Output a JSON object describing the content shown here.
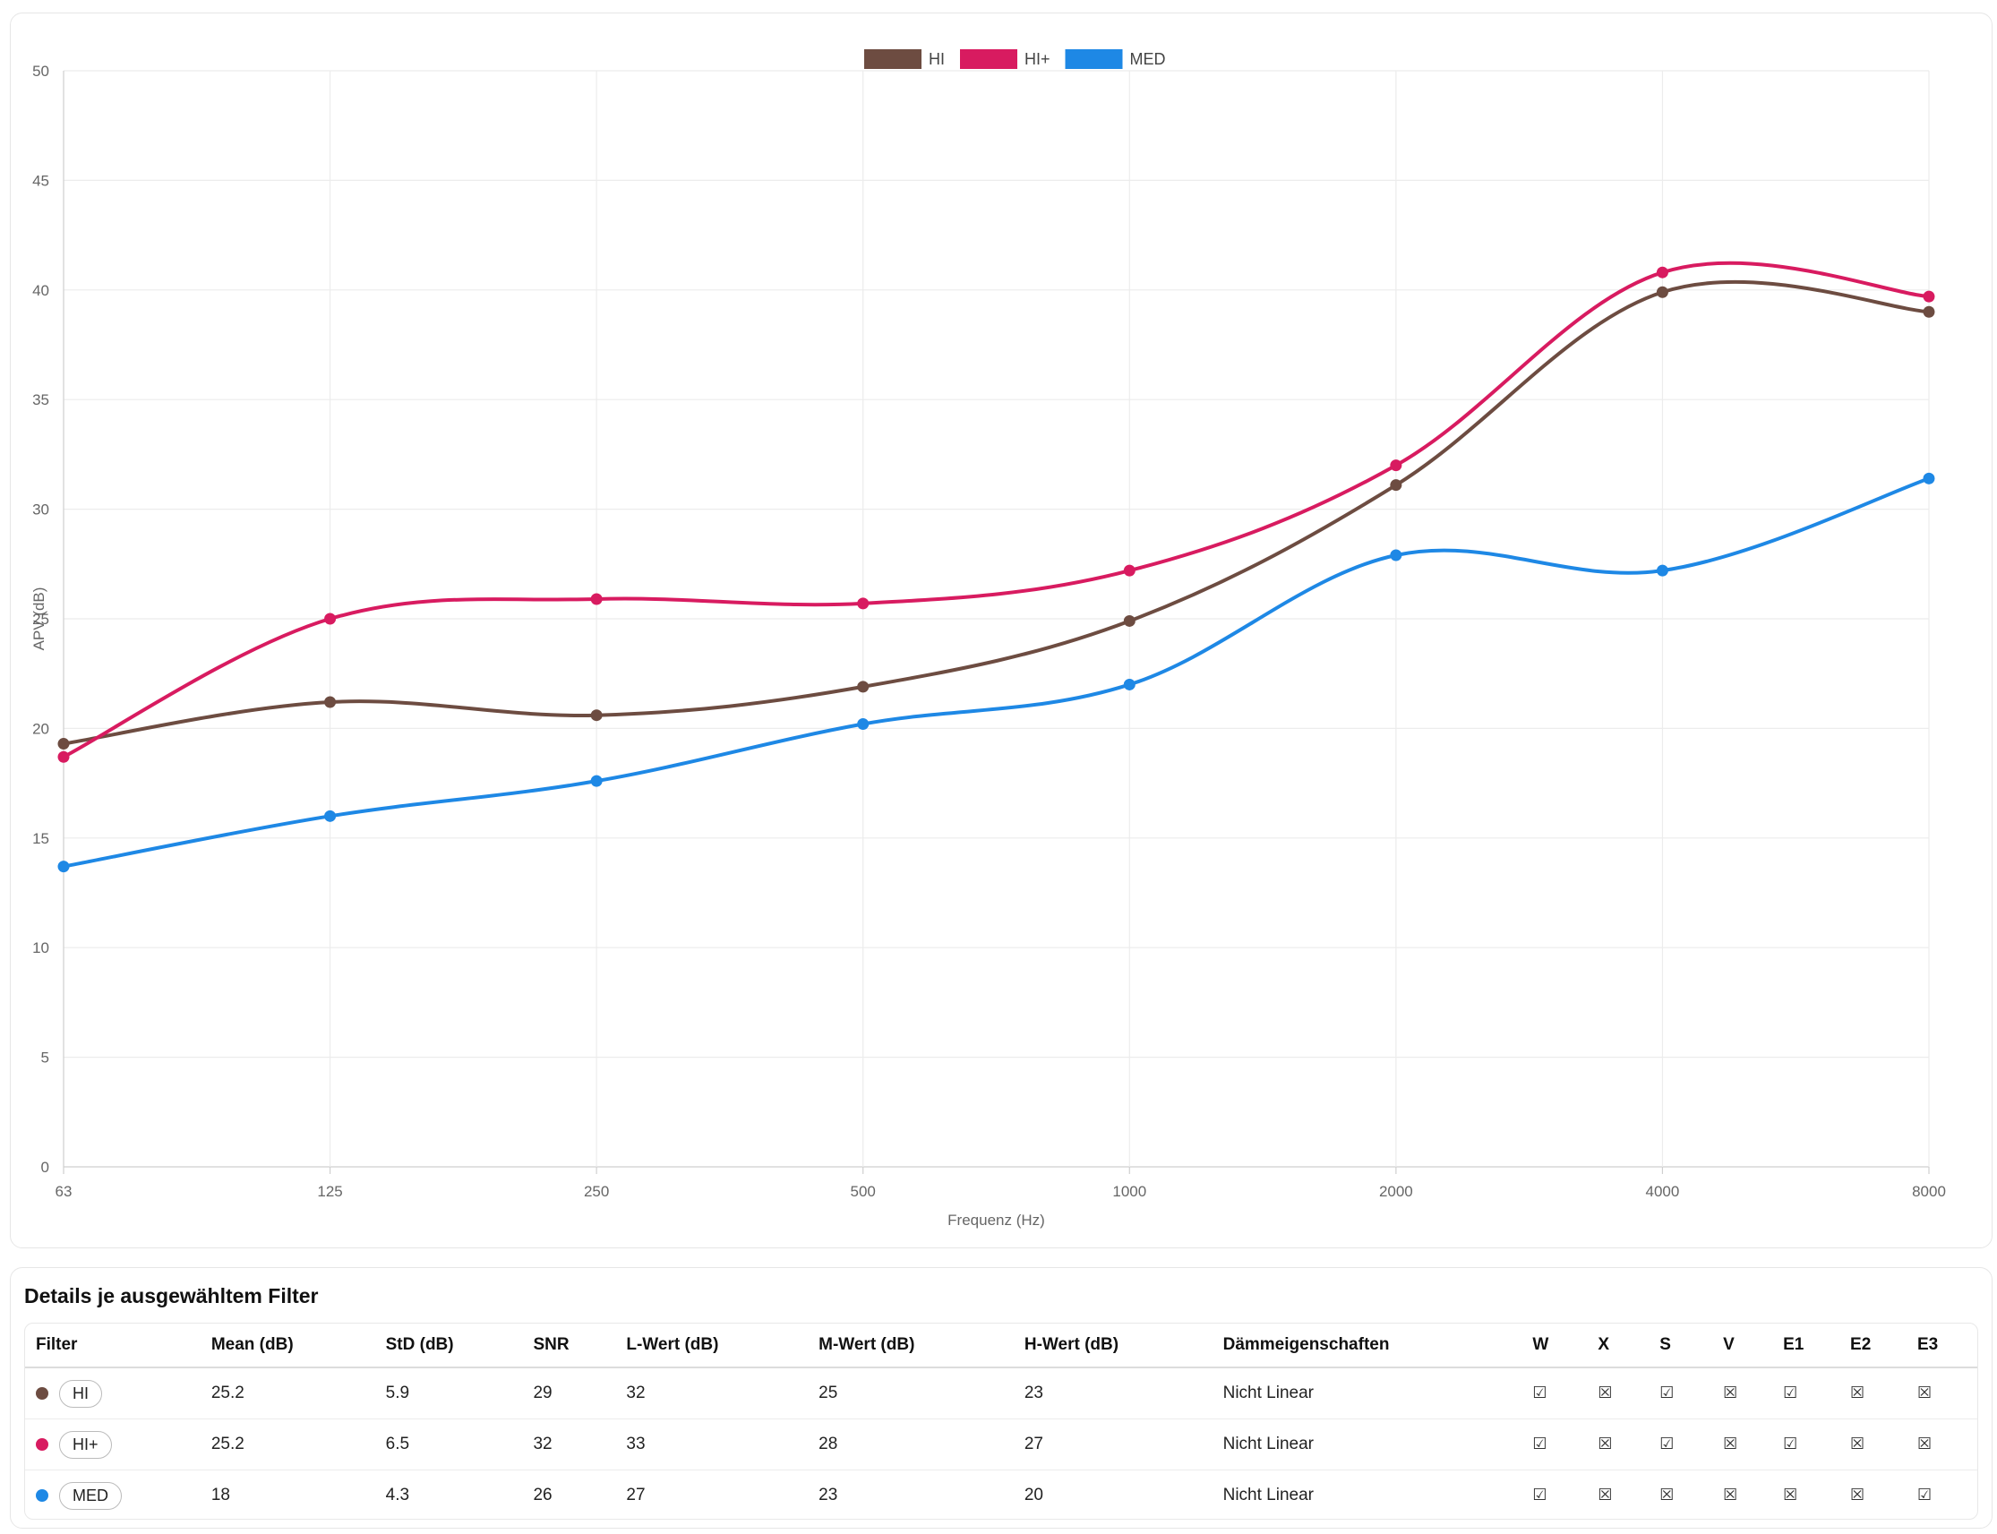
{
  "chart_data": {
    "type": "line",
    "x": [
      "63",
      "125",
      "250",
      "500",
      "1000",
      "2000",
      "4000",
      "8000"
    ],
    "xlabel": "Frequenz (Hz)",
    "ylabel": "APV (dB)",
    "ylim": [
      0,
      50
    ],
    "yticks": [
      0,
      5,
      10,
      15,
      20,
      25,
      30,
      35,
      40,
      45,
      50
    ],
    "grid": true,
    "legend": "top-center",
    "series": [
      {
        "name": "HI",
        "color": "#6d4c41",
        "values": [
          19.3,
          21.2,
          20.6,
          21.9,
          24.9,
          31.1,
          39.9,
          39.0
        ]
      },
      {
        "name": "HI+",
        "color": "#d81b60",
        "values": [
          18.7,
          25.0,
          25.9,
          25.7,
          27.2,
          32.0,
          40.8,
          39.7
        ]
      },
      {
        "name": "MED",
        "color": "#1e88e5",
        "values": [
          13.7,
          16.0,
          17.6,
          20.2,
          22.0,
          27.9,
          27.2,
          31.4
        ]
      }
    ]
  },
  "table": {
    "title": "Details je ausgewähltem Filter",
    "headers": [
      "Filter",
      "Mean (dB)",
      "StD (dB)",
      "SNR",
      "L-Wert (dB)",
      "M-Wert (dB)",
      "H-Wert (dB)",
      "Dämmeigenschaften",
      "W",
      "X",
      "S",
      "V",
      "E1",
      "E2",
      "E3"
    ],
    "rows": [
      {
        "name": "HI",
        "color": "#6d4c41",
        "values": [
          "25.2",
          "5.9",
          "29",
          "32",
          "25",
          "23",
          "Nicht Linear"
        ],
        "marks": [
          "☑",
          "☒",
          "☑",
          "☒",
          "☑",
          "☒",
          "☒"
        ]
      },
      {
        "name": "HI+",
        "color": "#d81b60",
        "values": [
          "25.2",
          "6.5",
          "32",
          "33",
          "28",
          "27",
          "Nicht Linear"
        ],
        "marks": [
          "☑",
          "☒",
          "☑",
          "☒",
          "☑",
          "☒",
          "☒"
        ]
      },
      {
        "name": "MED",
        "color": "#1e88e5",
        "values": [
          "18",
          "4.3",
          "26",
          "27",
          "23",
          "20",
          "Nicht Linear"
        ],
        "marks": [
          "☑",
          "☒",
          "☒",
          "☒",
          "☒",
          "☒",
          "☑"
        ]
      }
    ]
  }
}
